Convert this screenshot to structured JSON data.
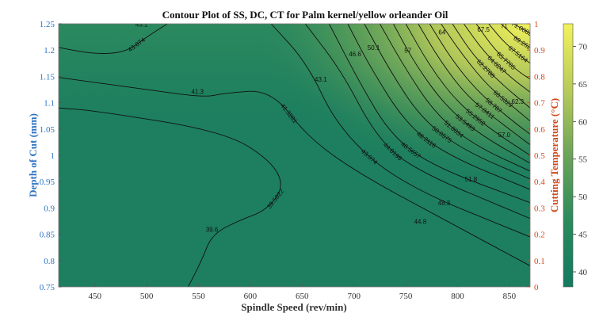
{
  "chart_data": {
    "type": "contour",
    "title": "Contour Plot of SS, DC, CT for Palm kernel/yellow orleander Oil",
    "xlabel": "Spindle Speed (rev/min)",
    "ylabel": "Depth of Cut (mm)",
    "colorbar_label": "Cutting Temperature (°C)",
    "xlim": [
      415,
      870
    ],
    "ylim": [
      0.75,
      1.25
    ],
    "right_ylim": [
      0,
      1
    ],
    "clim": [
      38,
      73
    ],
    "x_ticks": [
      "450",
      "500",
      "550",
      "600",
      "650",
      "700",
      "750",
      "800",
      "850"
    ],
    "y_ticks": [
      "0.75",
      "0.8",
      "0.85",
      "0.9",
      "0.95",
      "1",
      "1.05",
      "1.1",
      "1.15",
      "1.2",
      "1.25"
    ],
    "right_ticks": [
      "0",
      "0.1",
      "0.2",
      "0.3",
      "0.4",
      "0.5",
      "0.6",
      "0.7",
      "0.8",
      "0.9",
      "1"
    ],
    "colorbar_ticks": [
      "40",
      "45",
      "50",
      "55",
      "60",
      "65",
      "70"
    ],
    "contour_levels": [
      {
        "level": 39.5822,
        "label": "39.5822",
        "points": [
          [
            540,
            0.75
          ],
          [
            553,
            0.8
          ],
          [
            563,
            0.85
          ],
          [
            590,
            0.877
          ],
          [
            615,
            0.895
          ],
          [
            633,
            0.94
          ],
          [
            620,
            0.99
          ],
          [
            575,
            1.045
          ],
          [
            450,
            1.085
          ],
          [
            415,
            1.09
          ]
        ]
      },
      {
        "level": 41.3281,
        "label": "41.3281",
        "points": [
          [
            415,
            1.148
          ],
          [
            500,
            1.125
          ],
          [
            555,
            1.11
          ],
          [
            575,
            1.118
          ],
          [
            620,
            1.125
          ],
          [
            655,
            1.035
          ],
          [
            705,
            0.965
          ],
          [
            785,
            0.88
          ],
          [
            870,
            0.79
          ]
        ]
      },
      {
        "level": 43.074,
        "label": "43.074",
        "points": [
          [
            415,
            1.205
          ],
          [
            450,
            1.192
          ],
          [
            480,
            1.196
          ],
          [
            500,
            1.225
          ],
          [
            520,
            1.25
          ]
        ]
      },
      {
        "level": 43.074,
        "label": "43.074",
        "points": [
          [
            620,
            1.25
          ],
          [
            655,
            1.175
          ],
          [
            685,
            1.05
          ],
          [
            745,
            0.945
          ],
          [
            870,
            0.845
          ]
        ]
      },
      {
        "level": 44.8199,
        "label": "44.8199",
        "points": [
          [
            653,
            1.25
          ],
          [
            688,
            1.16
          ],
          [
            720,
            1.04
          ],
          [
            755,
            0.975
          ],
          [
            870,
            0.88
          ]
        ]
      },
      {
        "level": 46.5657,
        "label": "46.5657",
        "points": [
          [
            676,
            1.25
          ],
          [
            705,
            1.14
          ],
          [
            735,
            1.04
          ],
          [
            775,
            0.98
          ],
          [
            870,
            0.91
          ]
        ]
      },
      {
        "level": 48.3116,
        "label": "48.3116",
        "points": [
          [
            694,
            1.25
          ],
          [
            715,
            1.17
          ],
          [
            750,
            1.06
          ],
          [
            790,
            1.0
          ],
          [
            870,
            0.935
          ]
        ]
      },
      {
        "level": 50.0575,
        "label": "50.0575",
        "points": [
          [
            710,
            1.25
          ],
          [
            735,
            1.16
          ],
          [
            765,
            1.07
          ],
          [
            805,
            1.01
          ],
          [
            870,
            0.955
          ]
        ]
      },
      {
        "level": 51.8034,
        "label": "51.8034",
        "points": [
          [
            725,
            1.25
          ],
          [
            748,
            1.17
          ],
          [
            778,
            1.08
          ],
          [
            815,
            1.02
          ],
          [
            870,
            0.97
          ]
        ]
      },
      {
        "level": 53.5493,
        "label": "53.5493",
        "points": [
          [
            738,
            1.25
          ],
          [
            760,
            1.17
          ],
          [
            790,
            1.09
          ],
          [
            825,
            1.035
          ],
          [
            870,
            0.985
          ]
        ]
      },
      {
        "level": 55.2952,
        "label": "55.2952",
        "points": [
          [
            750,
            1.25
          ],
          [
            773,
            1.17
          ],
          [
            800,
            1.1
          ],
          [
            835,
            1.045
          ],
          [
            870,
            1.0
          ]
        ]
      },
      {
        "level": 57.0411,
        "label": "57.0411",
        "points": [
          [
            762,
            1.25
          ],
          [
            783,
            1.18
          ],
          [
            810,
            1.11
          ],
          [
            843,
            1.06
          ],
          [
            870,
            1.02
          ]
        ]
      },
      {
        "level": 58.787,
        "label": "58.787",
        "points": [
          [
            773,
            1.25
          ],
          [
            795,
            1.18
          ],
          [
            820,
            1.12
          ],
          [
            850,
            1.07
          ],
          [
            870,
            1.04
          ]
        ]
      },
      {
        "level": 60.5329,
        "label": "60.5329",
        "points": [
          [
            784,
            1.25
          ],
          [
            805,
            1.19
          ],
          [
            830,
            1.13
          ],
          [
            858,
            1.085
          ],
          [
            870,
            1.065
          ]
        ]
      },
      {
        "level": 62.2788,
        "label": "62.2788",
        "points": [
          [
            795,
            1.25
          ],
          [
            815,
            1.19
          ],
          [
            840,
            1.14
          ],
          [
            870,
            1.09
          ]
        ]
      },
      {
        "level": 64.0247,
        "label": "64.0247",
        "points": [
          [
            806,
            1.25
          ],
          [
            826,
            1.195
          ],
          [
            850,
            1.15
          ],
          [
            870,
            1.12
          ]
        ]
      },
      {
        "level": 65.7705,
        "label": "65.7705",
        "points": [
          [
            818,
            1.25
          ],
          [
            836,
            1.2
          ],
          [
            858,
            1.16
          ],
          [
            870,
            1.145
          ]
        ]
      },
      {
        "level": 67.5164,
        "label": "67.5164",
        "points": [
          [
            830,
            1.25
          ],
          [
            847,
            1.21
          ],
          [
            870,
            1.175
          ]
        ]
      },
      {
        "level": 69.2623,
        "label": "69.2623",
        "points": [
          [
            842,
            1.25
          ],
          [
            858,
            1.22
          ],
          [
            870,
            1.205
          ]
        ]
      },
      {
        "level": 71.0082,
        "label": "71.0082",
        "points": [
          [
            854,
            1.25
          ],
          [
            870,
            1.232
          ]
        ]
      }
    ],
    "annotations": [
      {
        "text": "43.1",
        "x": 495,
        "y": 1.245
      },
      {
        "text": "41.3",
        "x": 549,
        "y": 1.117
      },
      {
        "text": "43.1",
        "x": 668,
        "y": 1.14
      },
      {
        "text": "46.6",
        "x": 701,
        "y": 1.188
      },
      {
        "text": "50.1",
        "x": 719,
        "y": 1.2
      },
      {
        "text": "57",
        "x": 752,
        "y": 1.195
      },
      {
        "text": "64",
        "x": 785,
        "y": 1.23
      },
      {
        "text": "67.5",
        "x": 825,
        "y": 1.235
      },
      {
        "text": "71",
        "x": 845,
        "y": 1.242
      },
      {
        "text": "62.3",
        "x": 858,
        "y": 1.098
      },
      {
        "text": "57.0",
        "x": 845,
        "y": 1.035
      },
      {
        "text": "51.8",
        "x": 813,
        "y": 0.95
      },
      {
        "text": "48.3",
        "x": 787,
        "y": 0.905
      },
      {
        "text": "44.8",
        "x": 764,
        "y": 0.87
      },
      {
        "text": "39.6",
        "x": 563,
        "y": 0.855
      }
    ]
  }
}
